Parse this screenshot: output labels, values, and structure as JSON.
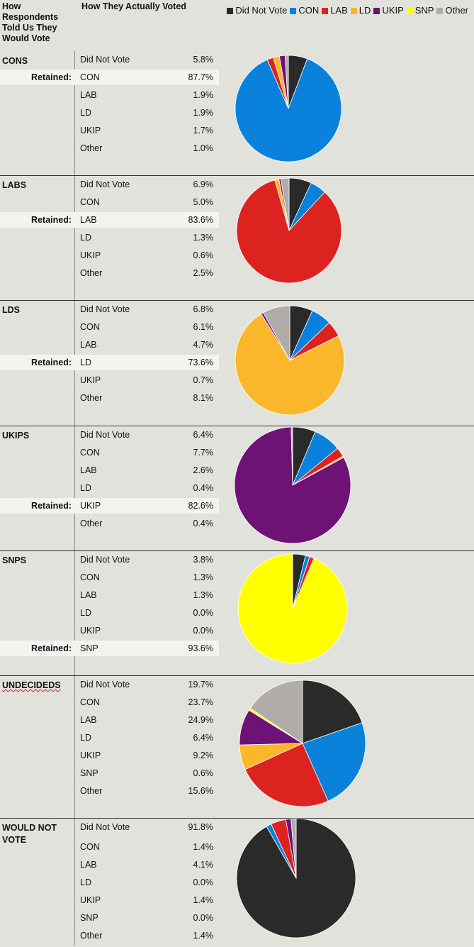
{
  "header": {
    "left_label": "How Respondents Told Us They Would Vote",
    "middle_label": "How They Actually Voted",
    "retained_label": "Retained:"
  },
  "legend": [
    {
      "name": "Did Not Vote",
      "color": "#2a2a2a"
    },
    {
      "name": "CON",
      "color": "#0a82dc"
    },
    {
      "name": "LAB",
      "color": "#dc2320"
    },
    {
      "name": "LD",
      "color": "#fbb72c"
    },
    {
      "name": "UKIP",
      "color": "#6f1275"
    },
    {
      "name": "SNP",
      "color": "#ffff00"
    },
    {
      "name": "Other",
      "color": "#b0aca8"
    }
  ],
  "chart_data": [
    {
      "type": "pie",
      "group": "CONS",
      "retained": "CON",
      "categories": [
        "Did Not Vote",
        "CON",
        "LAB",
        "LD",
        "UKIP",
        "Other"
      ],
      "labels": [
        "5.8%",
        "87.7%",
        "1.9%",
        "1.9%",
        "1.7%",
        "1.0%"
      ],
      "values": [
        5.8,
        87.7,
        1.9,
        1.9,
        1.7,
        1.0
      ]
    },
    {
      "type": "pie",
      "group": "LABS",
      "retained": "LAB",
      "categories": [
        "Did Not Vote",
        "CON",
        "LAB",
        "LD",
        "UKIP",
        "Other"
      ],
      "labels": [
        "6.9%",
        "5.0%",
        "83.6%",
        "1.3%",
        "0.6%",
        "2.5%"
      ],
      "values": [
        6.9,
        5.0,
        83.6,
        1.3,
        0.6,
        2.5
      ]
    },
    {
      "type": "pie",
      "group": "LDS",
      "retained": "LD",
      "categories": [
        "Did Not Vote",
        "CON",
        "LAB",
        "LD",
        "UKIP",
        "Other"
      ],
      "labels": [
        "6.8%",
        "6.1%",
        "4.7%",
        "73.6%",
        "0.7%",
        "8.1%"
      ],
      "values": [
        6.8,
        6.1,
        4.7,
        73.6,
        0.7,
        8.1
      ]
    },
    {
      "type": "pie",
      "group": "UKIPS",
      "retained": "UKIP",
      "categories": [
        "Did Not Vote",
        "CON",
        "LAB",
        "LD",
        "UKIP",
        "Other"
      ],
      "labels": [
        "6.4%",
        "7.7%",
        "2.6%",
        "0.4%",
        "82.6%",
        "0.4%"
      ],
      "values": [
        6.4,
        7.7,
        2.6,
        0.4,
        82.6,
        0.4
      ]
    },
    {
      "type": "pie",
      "group": "SNPS",
      "retained": "SNP",
      "categories": [
        "Did Not Vote",
        "CON",
        "LAB",
        "LD",
        "UKIP",
        "SNP"
      ],
      "labels": [
        "3.8%",
        "1.3%",
        "1.3%",
        "0.0%",
        "0.0%",
        "93.6%"
      ],
      "values": [
        3.8,
        1.3,
        1.3,
        0.0,
        0.0,
        93.6
      ]
    },
    {
      "type": "pie",
      "group": "UNDECIDEDS",
      "retained": "",
      "categories": [
        "Did Not Vote",
        "CON",
        "LAB",
        "LD",
        "UKIP",
        "SNP",
        "Other"
      ],
      "labels": [
        "19.7%",
        "23.7%",
        "24.9%",
        "6.4%",
        "9.2%",
        "0.6%",
        "15.6%"
      ],
      "values": [
        19.7,
        23.7,
        24.9,
        6.4,
        9.2,
        0.6,
        15.6
      ]
    },
    {
      "type": "pie",
      "group": "WOULD NOT VOTE",
      "retained": "",
      "categories": [
        "Did Not Vote",
        "CON",
        "LAB",
        "LD",
        "UKIP",
        "SNP",
        "Other"
      ],
      "labels": [
        "91.8%",
        "1.4%",
        "4.1%",
        "0.0%",
        "1.4%",
        "0.0%",
        "1.4%"
      ],
      "values": [
        91.8,
        1.4,
        4.1,
        0.0,
        1.4,
        0.0,
        1.4
      ]
    }
  ]
}
